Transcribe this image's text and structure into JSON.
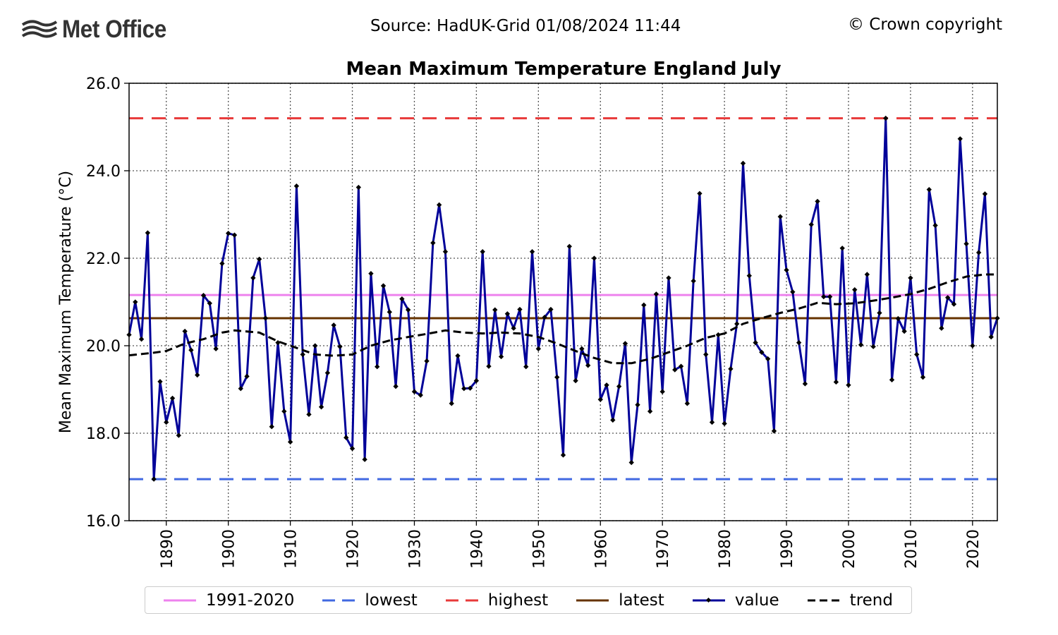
{
  "header": {
    "logo_text": "Met Office",
    "source": "Source: HadUK-Grid 01/08/2024 11:44",
    "copyright": "© Crown copyright"
  },
  "chart_data": {
    "type": "line",
    "title": "Mean Maximum Temperature England July",
    "ylabel": "Mean Maximum Temperature (°C)",
    "xlabel": "",
    "xlim": [
      1884,
      2024
    ],
    "ylim": [
      16.0,
      26.0
    ],
    "xticks": [
      1890,
      1900,
      1910,
      1920,
      1930,
      1940,
      1950,
      1960,
      1970,
      1980,
      1990,
      2000,
      2010,
      2020
    ],
    "yticks": [
      "16.0",
      "18.0",
      "20.0",
      "22.0",
      "24.0",
      "26.0"
    ],
    "grid": true,
    "legend_position": "bottom",
    "reference_lines": {
      "baseline_1991_2020": 21.16,
      "lowest": 16.95,
      "highest": 25.2,
      "latest": 20.63
    },
    "colors": {
      "baseline": "#ee82ee",
      "lowest": "#4169e1",
      "highest": "#e83a3a",
      "latest": "#663300",
      "value": "#000099",
      "trend": "#000000"
    },
    "series": [
      {
        "name": "value",
        "x_start": 1884,
        "values": [
          20.25,
          21.0,
          20.15,
          22.58,
          16.95,
          19.18,
          18.25,
          18.8,
          17.95,
          20.33,
          19.9,
          19.33,
          21.15,
          20.97,
          19.93,
          21.88,
          22.57,
          22.53,
          19.02,
          19.3,
          21.55,
          21.98,
          20.63,
          18.15,
          20.07,
          18.5,
          17.8,
          23.65,
          19.8,
          18.43,
          20.0,
          18.6,
          19.38,
          20.47,
          19.98,
          17.9,
          17.65,
          23.62,
          17.4,
          21.65,
          19.52,
          21.37,
          20.77,
          19.07,
          21.07,
          20.82,
          18.95,
          18.87,
          19.65,
          22.35,
          23.22,
          22.15,
          18.68,
          19.77,
          19.02,
          19.03,
          19.2,
          22.15,
          19.53,
          20.82,
          19.75,
          20.73,
          20.4,
          20.83,
          19.52,
          22.15,
          19.93,
          20.65,
          20.83,
          19.28,
          17.5,
          22.27,
          19.2,
          19.93,
          19.55,
          22.0,
          18.77,
          19.1,
          18.3,
          19.07,
          20.05,
          17.33,
          18.65,
          20.93,
          18.5,
          21.18,
          18.95,
          21.55,
          19.45,
          19.53,
          18.68,
          21.48,
          23.48,
          19.8,
          18.25,
          20.25,
          18.22,
          19.47,
          20.5,
          24.17,
          21.6,
          20.07,
          19.85,
          19.7,
          18.05,
          22.95,
          21.73,
          21.23,
          20.07,
          19.13,
          22.77,
          23.3,
          21.12,
          21.12,
          19.17,
          22.23,
          19.1,
          21.28,
          20.02,
          21.63,
          19.98,
          20.75,
          25.2,
          19.22,
          20.62,
          20.33,
          21.55,
          19.8,
          19.28,
          23.57,
          22.75,
          20.4,
          21.1,
          20.95,
          24.73,
          22.33,
          20.0,
          22.13,
          23.47,
          20.2,
          20.63
        ]
      },
      {
        "name": "trend",
        "points": [
          [
            1884,
            19.78
          ],
          [
            1888,
            19.84
          ],
          [
            1890,
            19.88
          ],
          [
            1893,
            20.05
          ],
          [
            1896,
            20.15
          ],
          [
            1899,
            20.3
          ],
          [
            1901,
            20.35
          ],
          [
            1905,
            20.3
          ],
          [
            1908,
            20.1
          ],
          [
            1911,
            19.95
          ],
          [
            1914,
            19.8
          ],
          [
            1917,
            19.77
          ],
          [
            1920,
            19.8
          ],
          [
            1923,
            20.0
          ],
          [
            1926,
            20.12
          ],
          [
            1929,
            20.2
          ],
          [
            1932,
            20.27
          ],
          [
            1935,
            20.35
          ],
          [
            1938,
            20.3
          ],
          [
            1941,
            20.28
          ],
          [
            1944,
            20.3
          ],
          [
            1947,
            20.28
          ],
          [
            1950,
            20.2
          ],
          [
            1953,
            20.05
          ],
          [
            1956,
            19.88
          ],
          [
            1959,
            19.72
          ],
          [
            1962,
            19.6
          ],
          [
            1965,
            19.6
          ],
          [
            1968,
            19.7
          ],
          [
            1971,
            19.85
          ],
          [
            1974,
            20.0
          ],
          [
            1977,
            20.18
          ],
          [
            1980,
            20.28
          ],
          [
            1983,
            20.5
          ],
          [
            1986,
            20.63
          ],
          [
            1989,
            20.75
          ],
          [
            1992,
            20.85
          ],
          [
            1995,
            20.98
          ],
          [
            1998,
            20.95
          ],
          [
            2001,
            20.97
          ],
          [
            2004,
            21.03
          ],
          [
            2007,
            21.1
          ],
          [
            2010,
            21.18
          ],
          [
            2013,
            21.3
          ],
          [
            2016,
            21.45
          ],
          [
            2019,
            21.58
          ],
          [
            2022,
            21.63
          ],
          [
            2024,
            21.63
          ]
        ]
      }
    ]
  },
  "legend": {
    "baseline": "1991-2020",
    "lowest": "lowest",
    "highest": "highest",
    "latest": "latest",
    "value": "value",
    "trend": "trend"
  }
}
